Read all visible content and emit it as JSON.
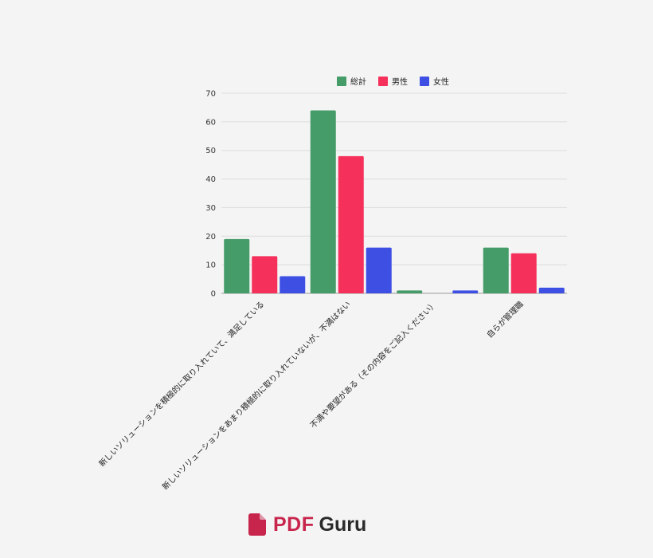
{
  "chart_data": {
    "type": "bar",
    "categories": [
      "新しいソリューションを積極的に取り入れていて、満足している",
      "新しいソリューションをあまり積極的に取り入れていないが、不満はない",
      "不満や要望がある（その内容をご記入ください）",
      "自らが管理職"
    ],
    "series": [
      {
        "name": "総計",
        "values": [
          19,
          64,
          1,
          16
        ],
        "color": "#459c68"
      },
      {
        "name": "男性",
        "values": [
          13,
          48,
          0,
          14
        ],
        "color": "#f5305a"
      },
      {
        "name": "女性",
        "values": [
          6,
          16,
          1,
          2
        ],
        "color": "#3e4fe3"
      }
    ],
    "ylim": [
      0,
      70
    ],
    "yticks": [
      0,
      10,
      20,
      30,
      40,
      50,
      60,
      70
    ],
    "grid": true,
    "legend": "top",
    "title": "",
    "xlabel": "",
    "ylabel": ""
  },
  "brand": {
    "name_part1": "PDF",
    "name_part2": "Guru",
    "icon": "pdf-file-icon",
    "color": "#c8254c"
  }
}
